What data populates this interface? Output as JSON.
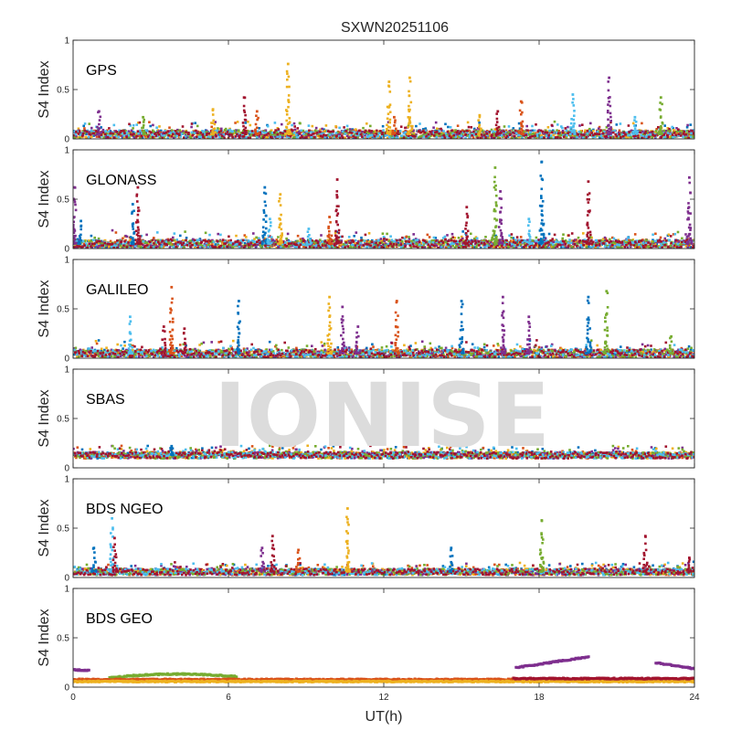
{
  "chart_data": {
    "type": "scatter",
    "title": "SXWN20251106",
    "xlabel": "UT(h)",
    "ylabel": "S4 Index",
    "xlim": [
      0,
      24
    ],
    "ylim": [
      0,
      1
    ],
    "x_ticks": [
      "0",
      "6",
      "12",
      "18",
      "24"
    ],
    "y_ticks": [
      "0",
      "0.5",
      "1"
    ],
    "watermark": "IONISE",
    "colors": [
      "#0072BD",
      "#D95319",
      "#EDB120",
      "#7E2F8E",
      "#77AC30",
      "#4DBEEE",
      "#A2142F"
    ],
    "panels": [
      {
        "label": "GPS",
        "baseline": 0.05,
        "noise": 0.05,
        "spikes": [
          {
            "x": 1.0,
            "peak": 0.28,
            "color": "#7E2F8E"
          },
          {
            "x": 2.7,
            "peak": 0.22,
            "color": "#77AC30"
          },
          {
            "x": 5.4,
            "peak": 0.3,
            "color": "#EDB120"
          },
          {
            "x": 6.6,
            "peak": 0.42,
            "color": "#A2142F"
          },
          {
            "x": 7.1,
            "peak": 0.28,
            "color": "#D95319"
          },
          {
            "x": 8.3,
            "peak": 0.76,
            "color": "#EDB120"
          },
          {
            "x": 12.2,
            "peak": 0.58,
            "color": "#EDB120"
          },
          {
            "x": 12.4,
            "peak": 0.22,
            "color": "#D95319"
          },
          {
            "x": 13.0,
            "peak": 0.62,
            "color": "#EDB120"
          },
          {
            "x": 15.7,
            "peak": 0.24,
            "color": "#EDB120"
          },
          {
            "x": 16.4,
            "peak": 0.28,
            "color": "#A2142F"
          },
          {
            "x": 17.3,
            "peak": 0.38,
            "color": "#D95319"
          },
          {
            "x": 19.3,
            "peak": 0.45,
            "color": "#4DBEEE"
          },
          {
            "x": 20.7,
            "peak": 0.62,
            "color": "#7E2F8E"
          },
          {
            "x": 21.7,
            "peak": 0.22,
            "color": "#4DBEEE"
          },
          {
            "x": 22.7,
            "peak": 0.42,
            "color": "#77AC30"
          }
        ]
      },
      {
        "label": "GLONASS",
        "baseline": 0.05,
        "noise": 0.05,
        "spikes": [
          {
            "x": 0.05,
            "peak": 0.62,
            "color": "#7E2F8E"
          },
          {
            "x": 0.3,
            "peak": 0.28,
            "color": "#0072BD"
          },
          {
            "x": 2.3,
            "peak": 0.45,
            "color": "#0072BD"
          },
          {
            "x": 2.5,
            "peak": 0.62,
            "color": "#A2142F"
          },
          {
            "x": 7.4,
            "peak": 0.62,
            "color": "#0072BD"
          },
          {
            "x": 7.6,
            "peak": 0.3,
            "color": "#4DBEEE"
          },
          {
            "x": 8.0,
            "peak": 0.55,
            "color": "#EDB120"
          },
          {
            "x": 9.1,
            "peak": 0.2,
            "color": "#4DBEEE"
          },
          {
            "x": 9.9,
            "peak": 0.32,
            "color": "#D95319"
          },
          {
            "x": 10.2,
            "peak": 0.7,
            "color": "#A2142F"
          },
          {
            "x": 15.2,
            "peak": 0.42,
            "color": "#A2142F"
          },
          {
            "x": 16.3,
            "peak": 0.82,
            "color": "#77AC30"
          },
          {
            "x": 16.5,
            "peak": 0.58,
            "color": "#7E2F8E"
          },
          {
            "x": 17.6,
            "peak": 0.3,
            "color": "#4DBEEE"
          },
          {
            "x": 18.1,
            "peak": 0.88,
            "color": "#0072BD"
          },
          {
            "x": 19.9,
            "peak": 0.68,
            "color": "#A2142F"
          },
          {
            "x": 23.8,
            "peak": 0.72,
            "color": "#7E2F8E"
          }
        ]
      },
      {
        "label": "GALILEO",
        "baseline": 0.05,
        "noise": 0.05,
        "spikes": [
          {
            "x": 2.2,
            "peak": 0.42,
            "color": "#4DBEEE"
          },
          {
            "x": 3.5,
            "peak": 0.32,
            "color": "#A2142F"
          },
          {
            "x": 3.8,
            "peak": 0.72,
            "color": "#D95319"
          },
          {
            "x": 4.3,
            "peak": 0.3,
            "color": "#A2142F"
          },
          {
            "x": 6.4,
            "peak": 0.58,
            "color": "#0072BD"
          },
          {
            "x": 9.9,
            "peak": 0.62,
            "color": "#EDB120"
          },
          {
            "x": 10.4,
            "peak": 0.52,
            "color": "#7E2F8E"
          },
          {
            "x": 11.0,
            "peak": 0.32,
            "color": "#7E2F8E"
          },
          {
            "x": 12.5,
            "peak": 0.58,
            "color": "#D95319"
          },
          {
            "x": 15.0,
            "peak": 0.58,
            "color": "#0072BD"
          },
          {
            "x": 16.6,
            "peak": 0.62,
            "color": "#7E2F8E"
          },
          {
            "x": 17.6,
            "peak": 0.42,
            "color": "#7E2F8E"
          },
          {
            "x": 19.9,
            "peak": 0.62,
            "color": "#0072BD"
          },
          {
            "x": 20.6,
            "peak": 0.68,
            "color": "#77AC30"
          },
          {
            "x": 23.1,
            "peak": 0.22,
            "color": "#77AC30"
          }
        ]
      },
      {
        "label": "SBAS",
        "baseline": 0.13,
        "noise": 0.04,
        "spikes": [
          {
            "x": 3.8,
            "peak": 0.22,
            "color": "#0072BD"
          }
        ]
      },
      {
        "label": "BDS NGEO",
        "baseline": 0.06,
        "noise": 0.04,
        "spikes": [
          {
            "x": 0.8,
            "peak": 0.3,
            "color": "#0072BD"
          },
          {
            "x": 1.5,
            "peak": 0.6,
            "color": "#4DBEEE"
          },
          {
            "x": 1.6,
            "peak": 0.4,
            "color": "#A2142F"
          },
          {
            "x": 7.3,
            "peak": 0.3,
            "color": "#7E2F8E"
          },
          {
            "x": 7.7,
            "peak": 0.42,
            "color": "#A2142F"
          },
          {
            "x": 8.7,
            "peak": 0.28,
            "color": "#D95319"
          },
          {
            "x": 10.6,
            "peak": 0.7,
            "color": "#EDB120"
          },
          {
            "x": 14.6,
            "peak": 0.3,
            "color": "#0072BD"
          },
          {
            "x": 18.1,
            "peak": 0.58,
            "color": "#77AC30"
          },
          {
            "x": 22.1,
            "peak": 0.42,
            "color": "#A2142F"
          },
          {
            "x": 23.8,
            "peak": 0.2,
            "color": "#A2142F"
          }
        ]
      },
      {
        "label": "BDS GEO",
        "baseline": 0.07,
        "noise": 0.01,
        "spikes": [],
        "tracks": [
          {
            "color": "#77AC30",
            "x0": 1.4,
            "x1": 6.3,
            "y0": 0.1,
            "y1": 0.11,
            "bump": 0.03
          },
          {
            "color": "#D95319",
            "x0": 0.0,
            "x1": 24.0,
            "y0": 0.08,
            "y1": 0.08,
            "bump": 0.0
          },
          {
            "color": "#EDB120",
            "x0": 0.0,
            "x1": 24.0,
            "y0": 0.06,
            "y1": 0.06,
            "bump": 0.0
          },
          {
            "color": "#7E2F8E",
            "x0": 0.0,
            "x1": 0.6,
            "y0": 0.18,
            "y1": 0.17,
            "bump": 0.0
          },
          {
            "color": "#7E2F8E",
            "x0": 17.1,
            "x1": 19.9,
            "y0": 0.2,
            "y1": 0.31,
            "bump": 0.0
          },
          {
            "color": "#7E2F8E",
            "x0": 22.5,
            "x1": 24.0,
            "y0": 0.25,
            "y1": 0.19,
            "bump": 0.0
          },
          {
            "color": "#A2142F",
            "x0": 17.0,
            "x1": 24.0,
            "y0": 0.09,
            "y1": 0.09,
            "bump": 0.0
          }
        ]
      }
    ]
  }
}
